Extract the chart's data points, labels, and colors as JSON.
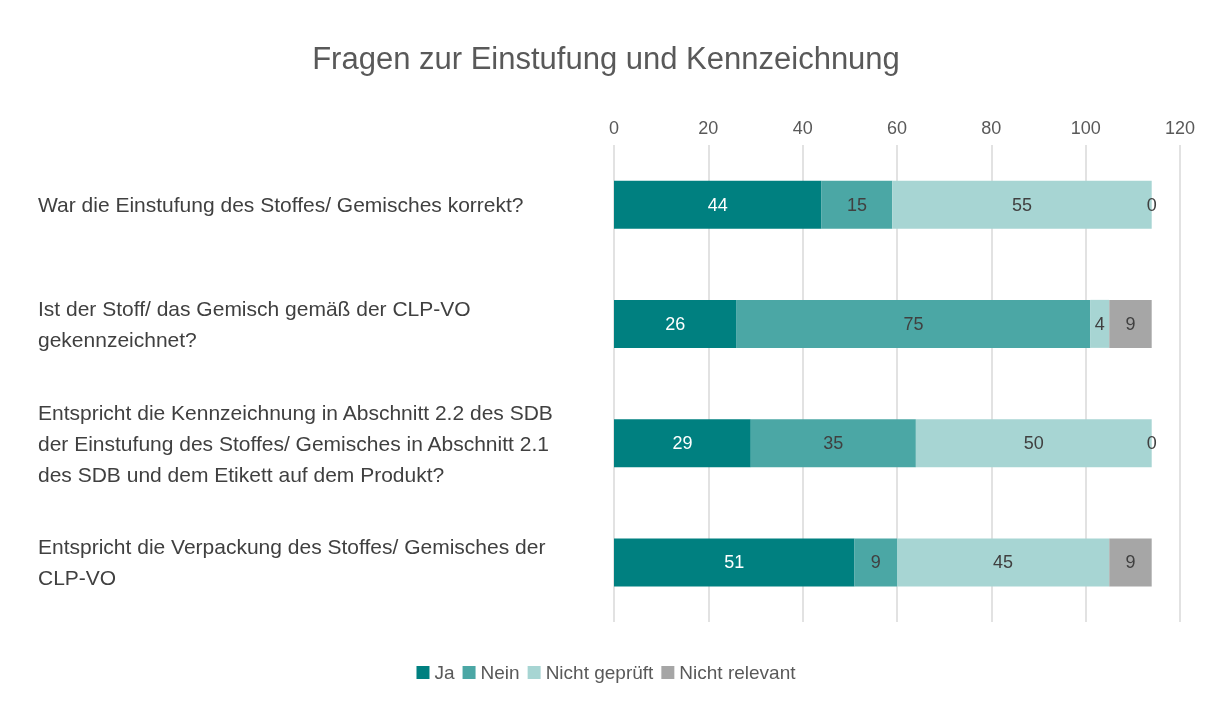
{
  "chart_data": {
    "type": "bar",
    "orientation": "horizontal",
    "stacked": true,
    "title": "Fragen zur Einstufung und Kennzeichnung",
    "categories": [
      "War die Einstufung des Stoffes/ Gemisches korrekt?",
      "Ist der Stoff/ das Gemisch gemäß der CLP-VO gekennzeichnet?",
      "Entspricht die Kennzeichnung in Abschnitt 2.2 des SDB der Einstufung des Stoffes/ Gemisches in Abschnitt 2.1 des SDB und dem Etikett auf dem Produkt?",
      "Entspricht die Verpackung des Stoffes/ Gemisches der CLP-VO"
    ],
    "series": [
      {
        "name": "Ja",
        "color": "#008080",
        "values": [
          44,
          26,
          29,
          51
        ]
      },
      {
        "name": "Nein",
        "color": "#4ba7a5",
        "values": [
          15,
          75,
          35,
          9
        ]
      },
      {
        "name": "Nicht geprüft",
        "color": "#a7d5d3",
        "values": [
          55,
          4,
          50,
          45
        ]
      },
      {
        "name": "Nicht relevant",
        "color": "#a6a6a6",
        "values": [
          0,
          9,
          0,
          9
        ]
      }
    ],
    "xlim": [
      0,
      120
    ],
    "xticks": [
      0,
      20,
      40,
      60,
      80,
      100,
      120
    ],
    "grid": "x",
    "legend": "bottom",
    "data_labels": true
  }
}
